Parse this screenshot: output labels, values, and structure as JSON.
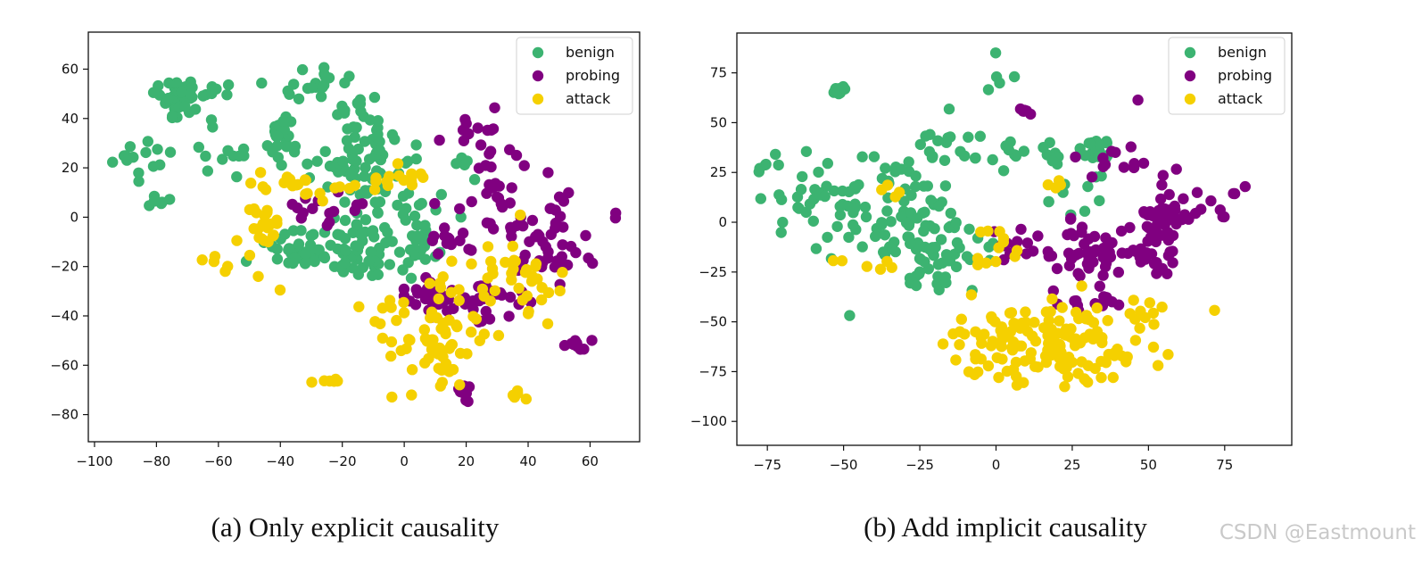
{
  "colors": {
    "benign": "#3cb371",
    "probing": "#800080",
    "attack": "#f5d000"
  },
  "watermark": "CSDN @Eastmount",
  "chart_data": [
    {
      "type": "scatter",
      "caption": "(a) Only explicit causality",
      "xlim": [
        -102,
        76
      ],
      "ylim": [
        -91,
        75
      ],
      "xticks": [
        -100,
        -80,
        -60,
        -40,
        -20,
        0,
        20,
        40,
        60
      ],
      "yticks": [
        -80,
        -60,
        -40,
        -20,
        0,
        20,
        40,
        60
      ],
      "legend_position": "top-right",
      "series": [
        {
          "name": "benign",
          "clusters": [
            {
              "x": -73,
              "y": 47,
              "sx": 4,
              "sy": 4,
              "n": 45
            },
            {
              "x": -82,
              "y": 22,
              "sx": 3,
              "sy": 5,
              "n": 8
            },
            {
              "x": -90,
              "y": 22,
              "sx": 2,
              "sy": 3,
              "n": 6
            },
            {
              "x": -80,
              "y": 6,
              "sx": 2,
              "sy": 2,
              "n": 6
            },
            {
              "x": -62,
              "y": 25,
              "sx": 5,
              "sy": 6,
              "n": 12
            },
            {
              "x": -58,
              "y": 52,
              "sx": 6,
              "sy": 3,
              "n": 8
            },
            {
              "x": -40,
              "y": 33,
              "sx": 3,
              "sy": 6,
              "n": 25
            },
            {
              "x": -28,
              "y": 55,
              "sx": 7,
              "sy": 4,
              "n": 18
            },
            {
              "x": -15,
              "y": 27,
              "sx": 6,
              "sy": 10,
              "n": 70
            },
            {
              "x": -35,
              "y": -13,
              "sx": 7,
              "sy": 4,
              "n": 35
            },
            {
              "x": -18,
              "y": -13,
              "sx": 6,
              "sy": 7,
              "n": 45
            },
            {
              "x": -3,
              "y": 2,
              "sx": 8,
              "sy": 9,
              "n": 45
            },
            {
              "x": 5,
              "y": -15,
              "sx": 3,
              "sy": 4,
              "n": 12
            },
            {
              "x": 20,
              "y": 22,
              "sx": 2,
              "sy": 3,
              "n": 5
            }
          ]
        },
        {
          "name": "probing",
          "clusters": [
            {
              "x": 22,
              "y": 35,
              "sx": 5,
              "sy": 3,
              "n": 10
            },
            {
              "x": 30,
              "y": 12,
              "sx": 7,
              "sy": 11,
              "n": 30
            },
            {
              "x": 45,
              "y": -10,
              "sx": 7,
              "sy": 11,
              "n": 45
            },
            {
              "x": 10,
              "y": -33,
              "sx": 5,
              "sy": 4,
              "n": 30
            },
            {
              "x": 27,
              "y": -35,
              "sx": 6,
              "sy": 5,
              "n": 25
            },
            {
              "x": 56,
              "y": -52,
              "sx": 2,
              "sy": 2,
              "n": 10
            },
            {
              "x": 20,
              "y": -71,
              "sx": 2,
              "sy": 2,
              "n": 10
            },
            {
              "x": -25,
              "y": 3,
              "sx": 8,
              "sy": 4,
              "n": 15
            },
            {
              "x": 69,
              "y": 0,
              "sx": 1,
              "sy": 1,
              "n": 2
            },
            {
              "x": 15,
              "y": -10,
              "sx": 4,
              "sy": 4,
              "n": 12
            }
          ]
        },
        {
          "name": "attack",
          "clusters": [
            {
              "x": -33,
              "y": 12,
              "sx": 6,
              "sy": 3,
              "n": 20
            },
            {
              "x": -45,
              "y": -5,
              "sx": 3,
              "sy": 10,
              "n": 25
            },
            {
              "x": -60,
              "y": -18,
              "sx": 3,
              "sy": 2,
              "n": 5
            },
            {
              "x": -5,
              "y": 15,
              "sx": 6,
              "sy": 3,
              "n": 15
            },
            {
              "x": 8,
              "y": -50,
              "sx": 10,
              "sy": 10,
              "n": 70
            },
            {
              "x": 30,
              "y": -25,
              "sx": 9,
              "sy": 10,
              "n": 30
            },
            {
              "x": -25,
              "y": -66,
              "sx": 2,
              "sy": 1,
              "n": 6
            },
            {
              "x": 37,
              "y": -72,
              "sx": 1,
              "sy": 1,
              "n": 5
            },
            {
              "x": 45,
              "y": -30,
              "sx": 8,
              "sy": 8,
              "n": 10
            }
          ]
        }
      ]
    },
    {
      "type": "scatter",
      "caption": "(b) Add implicit causality",
      "xlim": [
        -85,
        97
      ],
      "ylim": [
        -112,
        95
      ],
      "xticks": [
        -75,
        -50,
        -25,
        0,
        25,
        50,
        75
      ],
      "yticks": [
        -100,
        -75,
        -50,
        -25,
        0,
        25,
        50,
        75
      ],
      "legend_position": "top-right",
      "series": [
        {
          "name": "benign",
          "clusters": [
            {
              "x": -52,
              "y": 66,
              "sx": 1,
              "sy": 1,
              "n": 12
            },
            {
              "x": 0,
              "y": 72,
              "sx": 3,
              "sy": 5,
              "n": 5
            },
            {
              "x": -60,
              "y": 10,
              "sx": 7,
              "sy": 10,
              "n": 30
            },
            {
              "x": -35,
              "y": 5,
              "sx": 9,
              "sy": 16,
              "n": 60
            },
            {
              "x": -20,
              "y": -15,
              "sx": 8,
              "sy": 10,
              "n": 60
            },
            {
              "x": -15,
              "y": 38,
              "sx": 7,
              "sy": 7,
              "n": 20
            },
            {
              "x": 10,
              "y": 33,
              "sx": 10,
              "sy": 4,
              "n": 15
            },
            {
              "x": 32,
              "y": 37,
              "sx": 3,
              "sy": 3,
              "n": 15
            },
            {
              "x": 25,
              "y": 10,
              "sx": 6,
              "sy": 5,
              "n": 10
            },
            {
              "x": -75,
              "y": 30,
              "sx": 3,
              "sy": 3,
              "n": 6
            }
          ]
        },
        {
          "name": "probing",
          "clusters": [
            {
              "x": 10,
              "y": 56,
              "sx": 2,
              "sy": 1,
              "n": 5
            },
            {
              "x": 47,
              "y": 62,
              "sx": 1,
              "sy": 1,
              "n": 1
            },
            {
              "x": 30,
              "y": -15,
              "sx": 8,
              "sy": 8,
              "n": 50
            },
            {
              "x": 55,
              "y": 2,
              "sx": 4,
              "sy": 4,
              "n": 30
            },
            {
              "x": 50,
              "y": -15,
              "sx": 6,
              "sy": 6,
              "n": 30
            },
            {
              "x": 70,
              "y": 15,
              "sx": 8,
              "sy": 8,
              "n": 15
            },
            {
              "x": 10,
              "y": -10,
              "sx": 6,
              "sy": 6,
              "n": 15
            },
            {
              "x": 40,
              "y": 30,
              "sx": 6,
              "sy": 5,
              "n": 12
            },
            {
              "x": 30,
              "y": -38,
              "sx": 8,
              "sy": 3,
              "n": 12
            }
          ]
        },
        {
          "name": "attack",
          "clusters": [
            {
              "x": 18,
              "y": -60,
              "sx": 16,
              "sy": 10,
              "n": 150
            },
            {
              "x": 0,
              "y": -15,
              "sx": 5,
              "sy": 6,
              "n": 12
            },
            {
              "x": -45,
              "y": -20,
              "sx": 5,
              "sy": 3,
              "n": 6
            },
            {
              "x": -35,
              "y": 15,
              "sx": 2,
              "sy": 2,
              "n": 4
            },
            {
              "x": 20,
              "y": 20,
              "sx": 3,
              "sy": 3,
              "n": 4
            },
            {
              "x": 48,
              "y": -45,
              "sx": 4,
              "sy": 4,
              "n": 8
            }
          ]
        }
      ]
    }
  ]
}
